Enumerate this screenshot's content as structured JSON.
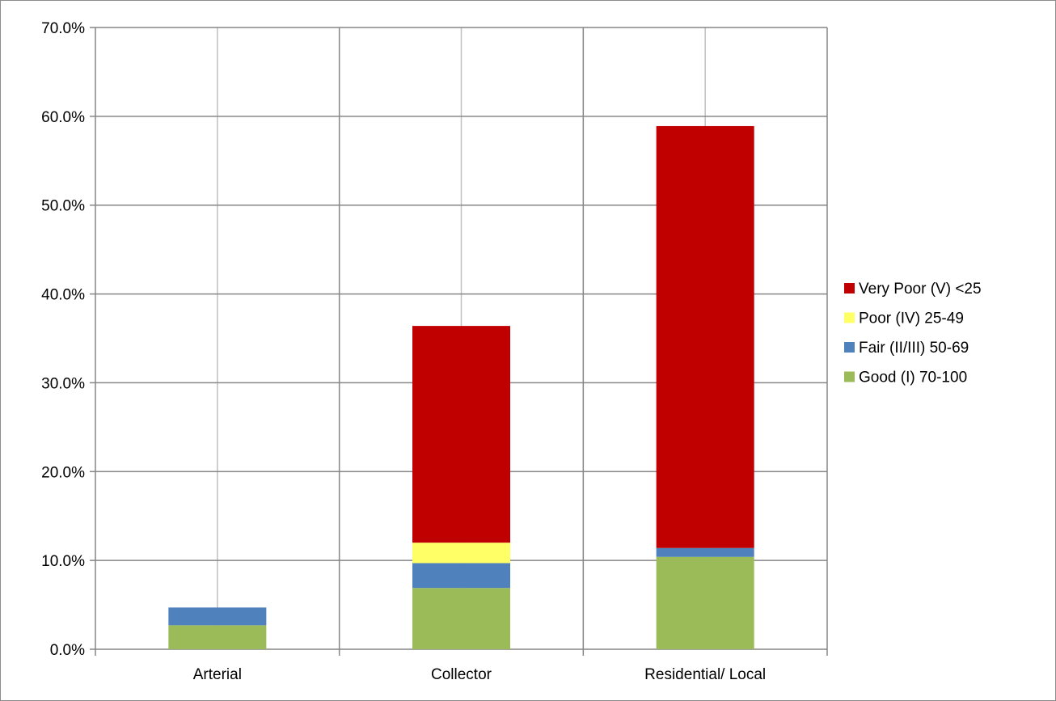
{
  "chart_data": {
    "type": "bar",
    "stacked": true,
    "categories": [
      "Arterial",
      "Collector",
      "Residential/ Local"
    ],
    "series": [
      {
        "name": "Good (I) 70-100",
        "color": "#9bbb59",
        "values": [
          2.7,
          6.9,
          10.4
        ]
      },
      {
        "name": "Fair (II/III) 50-69",
        "color": "#4f81bd",
        "values": [
          2.0,
          2.8,
          1.0
        ]
      },
      {
        "name": "Poor (IV) 25-49",
        "color": "#ffff66",
        "values": [
          0.0,
          2.3,
          0.0
        ]
      },
      {
        "name": "Very Poor (V) <25",
        "color": "#c00000",
        "values": [
          0.0,
          24.4,
          47.5
        ]
      }
    ],
    "ylim": [
      0,
      70
    ],
    "ytick_step": 10,
    "ytick_format": "0.0%",
    "grid": {
      "horizontal": true,
      "vertical": true
    },
    "legend_position": "right",
    "legend_order": [
      "Very Poor (V) <25",
      "Poor (IV) 25-49",
      "Fair (II/III) 50-69",
      "Good (I) 70-100"
    ],
    "title": "",
    "xlabel": "",
    "ylabel": ""
  }
}
